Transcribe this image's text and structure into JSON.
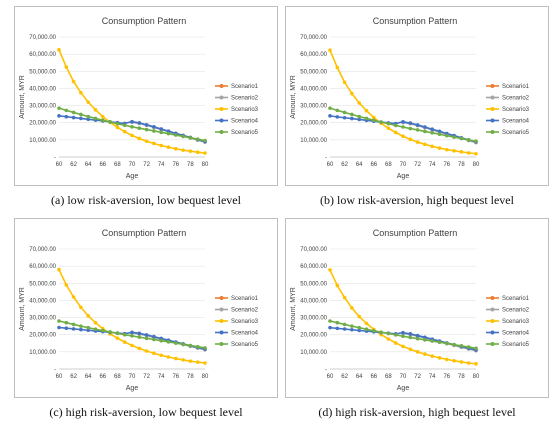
{
  "colors": {
    "Scenario1": "#ed7d31",
    "Scenario2": "#a5a5a5",
    "Scenario3": "#ffc000",
    "Scenario4": "#4472c4",
    "Scenario5": "#70ad47"
  },
  "chart_data": [
    {
      "type": "line",
      "title": "Consumption Pattern",
      "caption": "(a) low risk-aversion, low bequest level",
      "xlabel": "Age",
      "ylabel": "Amount, MYR",
      "x": [
        60,
        61,
        62,
        63,
        64,
        65,
        66,
        67,
        68,
        69,
        70,
        71,
        72,
        73,
        74,
        75,
        76,
        77,
        78,
        79,
        80
      ],
      "xticks": [
        "60",
        "62",
        "64",
        "66",
        "68",
        "70",
        "72",
        "74",
        "76",
        "78",
        "80"
      ],
      "ylim": [
        0,
        70000
      ],
      "yticks": [
        "-",
        "10,000.00",
        "20,000.00",
        "30,000.00",
        "40,000.00",
        "50,000.00",
        "60,000.00",
        "70,000.00"
      ],
      "legend": "right",
      "series": [
        {
          "name": "Scenario1",
          "values": [
            null,
            null,
            null,
            null,
            null,
            null,
            null,
            null,
            null,
            null,
            20400,
            19800,
            18700,
            17500,
            16200,
            15000,
            13700,
            12500,
            11300,
            10000,
            8900
          ]
        },
        {
          "name": "Scenario2",
          "values": [
            null,
            null,
            null,
            null,
            null,
            null,
            null,
            null,
            null,
            null,
            20200,
            19600,
            18500,
            17300,
            16000,
            14800,
            13500,
            12300,
            11100,
            9900,
            8700
          ]
        },
        {
          "name": "Scenario3",
          "values": [
            62500,
            52500,
            44000,
            37500,
            32000,
            27500,
            23500,
            20200,
            17300,
            14800,
            12600,
            10800,
            9200,
            7900,
            6700,
            5700,
            4800,
            4000,
            3400,
            2800,
            2300
          ]
        },
        {
          "name": "Scenario4",
          "values": [
            24000,
            23500,
            23000,
            22500,
            22000,
            21500,
            21000,
            20500,
            20000,
            19600,
            20600,
            19900,
            18800,
            17600,
            16300,
            15100,
            13800,
            12600,
            11400,
            10100,
            9000
          ]
        },
        {
          "name": "Scenario5",
          "values": [
            28500,
            27200,
            26000,
            24800,
            23600,
            22500,
            21400,
            20400,
            19400,
            18500,
            17600,
            16800,
            16000,
            15200,
            14400,
            13600,
            12800,
            12000,
            11200,
            10400,
            9600
          ]
        }
      ]
    },
    {
      "type": "line",
      "title": "Consumption Pattern",
      "caption": "(b) low risk-aversion, high bequest level",
      "xlabel": "Age",
      "ylabel": "Amount, MYR",
      "x": [
        60,
        61,
        62,
        63,
        64,
        65,
        66,
        67,
        68,
        69,
        70,
        71,
        72,
        73,
        74,
        75,
        76,
        77,
        78,
        79,
        80
      ],
      "xticks": [
        "60",
        "62",
        "64",
        "66",
        "68",
        "70",
        "72",
        "74",
        "76",
        "78",
        "80"
      ],
      "ylim": [
        0,
        70000
      ],
      "yticks": [
        "-",
        "10,000.00",
        "20,000.00",
        "30,000.00",
        "40,000.00",
        "50,000.00",
        "60,000.00",
        "70,000.00"
      ],
      "legend": "right",
      "series": [
        {
          "name": "Scenario1",
          "values": [
            null,
            null,
            null,
            null,
            null,
            null,
            null,
            null,
            null,
            null,
            20300,
            19600,
            18500,
            17300,
            16000,
            14800,
            13500,
            12300,
            11000,
            9800,
            8600
          ]
        },
        {
          "name": "Scenario2",
          "values": [
            null,
            null,
            null,
            null,
            null,
            null,
            null,
            null,
            null,
            null,
            20100,
            19400,
            18300,
            17100,
            15800,
            14600,
            13300,
            12100,
            10900,
            9600,
            8400
          ]
        },
        {
          "name": "Scenario3",
          "values": [
            62300,
            52200,
            43600,
            37000,
            31500,
            27000,
            23000,
            19700,
            16800,
            14300,
            12100,
            10300,
            8700,
            7400,
            6200,
            5200,
            4300,
            3600,
            3000,
            2400,
            1900
          ]
        },
        {
          "name": "Scenario4",
          "values": [
            24000,
            23400,
            22900,
            22400,
            21900,
            21400,
            20900,
            20400,
            19900,
            19500,
            20500,
            19800,
            18700,
            17500,
            16200,
            15000,
            13700,
            12500,
            11200,
            10000,
            8800
          ]
        },
        {
          "name": "Scenario5",
          "values": [
            28500,
            27200,
            26000,
            24800,
            23600,
            22500,
            21400,
            20400,
            19400,
            18400,
            17500,
            16600,
            15800,
            14900,
            14100,
            13300,
            12400,
            11600,
            10800,
            10000,
            9200
          ]
        }
      ]
    },
    {
      "type": "line",
      "title": "Consumption Pattern",
      "caption": "(c) high risk-aversion, low bequest level",
      "xlabel": "Age",
      "ylabel": "Amount, MYR",
      "x": [
        60,
        61,
        62,
        63,
        64,
        65,
        66,
        67,
        68,
        69,
        70,
        71,
        72,
        73,
        74,
        75,
        76,
        77,
        78,
        79,
        80
      ],
      "xticks": [
        "60",
        "62",
        "64",
        "66",
        "68",
        "70",
        "72",
        "74",
        "76",
        "78",
        "80"
      ],
      "ylim": [
        0,
        70000
      ],
      "yticks": [
        "-",
        "10,000.00",
        "20,000.00",
        "30,000.00",
        "40,000.00",
        "50,000.00",
        "60,000.00",
        "70,000.00"
      ],
      "legend": "right",
      "series": [
        {
          "name": "Scenario1",
          "values": [
            null,
            null,
            null,
            null,
            null,
            null,
            null,
            null,
            null,
            null,
            21200,
            20600,
            19700,
            18700,
            17600,
            16600,
            15500,
            14500,
            13400,
            12400,
            11400
          ]
        },
        {
          "name": "Scenario2",
          "values": [
            null,
            null,
            null,
            null,
            null,
            null,
            null,
            null,
            null,
            null,
            21000,
            20400,
            19500,
            18500,
            17400,
            16400,
            15300,
            14300,
            13200,
            12200,
            11200
          ]
        },
        {
          "name": "Scenario3",
          "values": [
            58000,
            49000,
            42000,
            36000,
            31000,
            27000,
            23500,
            20500,
            18000,
            15700,
            13700,
            12000,
            10500,
            9200,
            8000,
            7000,
            6100,
            5300,
            4600,
            4000,
            3500
          ]
        },
        {
          "name": "Scenario4",
          "values": [
            24200,
            23800,
            23400,
            23000,
            22600,
            22200,
            21800,
            21400,
            21000,
            20600,
            21400,
            20800,
            19900,
            18900,
            17800,
            16800,
            15700,
            14700,
            13600,
            12600,
            11600
          ]
        },
        {
          "name": "Scenario5",
          "values": [
            28000,
            27000,
            26000,
            25000,
            24100,
            23200,
            22400,
            21600,
            20800,
            20000,
            19300,
            18600,
            17900,
            17200,
            16500,
            15800,
            15100,
            14400,
            13700,
            13000,
            12300
          ]
        }
      ]
    },
    {
      "type": "line",
      "title": "Consumption Pattern",
      "caption": "(d) high risk-aversion, high bequest level",
      "xlabel": "Age",
      "ylabel": "Amount, MYR",
      "x": [
        60,
        61,
        62,
        63,
        64,
        65,
        66,
        67,
        68,
        69,
        70,
        71,
        72,
        73,
        74,
        75,
        76,
        77,
        78,
        79,
        80
      ],
      "xticks": [
        "60",
        "62",
        "64",
        "66",
        "68",
        "70",
        "72",
        "74",
        "76",
        "78",
        "80"
      ],
      "ylim": [
        0,
        70000
      ],
      "yticks": [
        "-",
        "10,000.00",
        "20,000.00",
        "30,000.00",
        "40,000.00",
        "50,000.00",
        "60,000.00",
        "70,000.00"
      ],
      "legend": "right",
      "series": [
        {
          "name": "Scenario1",
          "values": [
            null,
            null,
            null,
            null,
            null,
            null,
            null,
            null,
            null,
            null,
            21000,
            20300,
            19300,
            18300,
            17200,
            16100,
            15000,
            14000,
            12900,
            11900,
            10900
          ]
        },
        {
          "name": "Scenario2",
          "values": [
            null,
            null,
            null,
            null,
            null,
            null,
            null,
            null,
            null,
            null,
            20800,
            20100,
            19100,
            18100,
            17000,
            15900,
            14800,
            13800,
            12700,
            11700,
            10700
          ]
        },
        {
          "name": "Scenario3",
          "values": [
            57800,
            48700,
            41600,
            35600,
            30600,
            26600,
            23100,
            20100,
            17500,
            15200,
            13200,
            11500,
            10000,
            8700,
            7500,
            6500,
            5600,
            4800,
            4100,
            3500,
            3000
          ]
        },
        {
          "name": "Scenario4",
          "values": [
            24100,
            23700,
            23300,
            22900,
            22500,
            22100,
            21700,
            21300,
            20900,
            20500,
            21200,
            20500,
            19500,
            18500,
            17400,
            16300,
            15200,
            14200,
            13100,
            12100,
            11100
          ]
        },
        {
          "name": "Scenario5",
          "values": [
            28000,
            27000,
            26000,
            25000,
            24100,
            23200,
            22300,
            21500,
            20700,
            19900,
            19100,
            18400,
            17700,
            17000,
            16300,
            15600,
            14900,
            14200,
            13500,
            12800,
            12100
          ]
        }
      ]
    }
  ]
}
